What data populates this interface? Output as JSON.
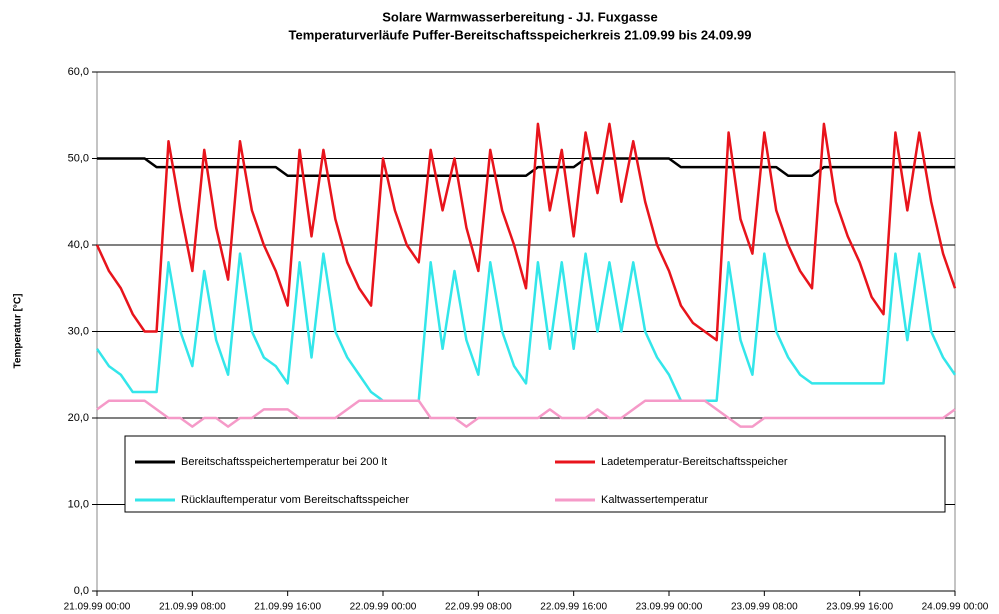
{
  "chart_data": {
    "type": "line",
    "title": "Solare Warmwasserbereitung - JJ. Fuxgasse",
    "subtitle": "Temperaturverläufe Puffer-Bereitschaftsspeicherkreis 21.09.99 bis 24.09.99",
    "y_label": "Temperatur [°C]",
    "x": [
      0,
      1,
      2,
      3,
      4,
      5,
      6,
      7,
      8,
      9,
      10,
      11,
      12,
      13,
      14,
      15,
      16,
      17,
      18,
      19,
      20,
      21,
      22,
      23,
      24,
      25,
      26,
      27,
      28,
      29,
      30,
      31,
      32,
      33,
      34,
      35,
      36,
      37,
      38,
      39,
      40,
      41,
      42,
      43,
      44,
      45,
      46,
      47,
      48,
      49,
      50,
      51,
      52,
      53,
      54,
      55,
      56,
      57,
      58,
      59,
      60,
      61,
      62,
      63,
      64,
      65,
      66,
      67,
      68,
      69,
      70,
      71,
      72
    ],
    "xlim": [
      0,
      72
    ],
    "xticks": [
      {
        "value": 0,
        "label": "21.09.99 00:00"
      },
      {
        "value": 8,
        "label": "21.09.99 08:00"
      },
      {
        "value": 16,
        "label": "21.09.99 16:00"
      },
      {
        "value": 24,
        "label": "22.09.99 00:00"
      },
      {
        "value": 32,
        "label": "22.09.99 08:00"
      },
      {
        "value": 40,
        "label": "22.09.99 16:00"
      },
      {
        "value": 48,
        "label": "23.09.99 00:00"
      },
      {
        "value": 56,
        "label": "23.09.99 08:00"
      },
      {
        "value": 64,
        "label": "23.09.99 16:00"
      },
      {
        "value": 72,
        "label": "24.09.99 00:00"
      }
    ],
    "ylim": [
      0,
      60
    ],
    "yticks": [
      {
        "value": 0,
        "label": "0,0"
      },
      {
        "value": 10,
        "label": "10,0"
      },
      {
        "value": 20,
        "label": "20,0"
      },
      {
        "value": 30,
        "label": "30,0"
      },
      {
        "value": 40,
        "label": "40,0"
      },
      {
        "value": 50,
        "label": "50,0"
      },
      {
        "value": 60,
        "label": "60,0"
      }
    ],
    "grid": true,
    "legend": "bottom",
    "series": [
      {
        "name": "Bereitschaftsspeichertemperatur bei 200 lt",
        "color": "#000000",
        "values": [
          50,
          50,
          50,
          50,
          50,
          49,
          49,
          49,
          49,
          49,
          49,
          49,
          49,
          49,
          49,
          49,
          48,
          48,
          48,
          48,
          48,
          48,
          48,
          48,
          48,
          48,
          48,
          48,
          48,
          48,
          48,
          48,
          48,
          48,
          48,
          48,
          48,
          49,
          49,
          49,
          49,
          50,
          50,
          50,
          50,
          50,
          50,
          50,
          50,
          49,
          49,
          49,
          49,
          49,
          49,
          49,
          49,
          49,
          48,
          48,
          48,
          49,
          49,
          49,
          49,
          49,
          49,
          49,
          49,
          49,
          49,
          49,
          49
        ]
      },
      {
        "name": "Ladetemperatur-Bereitschaftsspeicher",
        "color": "#e8141c",
        "values": [
          40,
          37,
          35,
          32,
          30,
          30,
          52,
          44,
          37,
          51,
          42,
          36,
          52,
          44,
          40,
          37,
          33,
          51,
          41,
          51,
          43,
          38,
          35,
          33,
          50,
          44,
          40,
          38,
          51,
          44,
          50,
          42,
          37,
          51,
          44,
          40,
          35,
          54,
          44,
          51,
          41,
          53,
          46,
          54,
          45,
          52,
          45,
          40,
          37,
          33,
          31,
          30,
          29,
          53,
          43,
          39,
          53,
          44,
          40,
          37,
          35,
          54,
          45,
          41,
          38,
          34,
          32,
          53,
          44,
          53,
          45,
          39,
          35
        ]
      },
      {
        "name": "Rücklauftemperatur vom Bereitschaftsspeicher",
        "color": "#33e6ea",
        "values": [
          28,
          26,
          25,
          23,
          23,
          23,
          38,
          30,
          26,
          37,
          29,
          25,
          39,
          30,
          27,
          26,
          24,
          38,
          27,
          39,
          30,
          27,
          25,
          23,
          22,
          22,
          22,
          22,
          38,
          28,
          37,
          29,
          25,
          38,
          30,
          26,
          24,
          38,
          28,
          38,
          28,
          39,
          30,
          38,
          30,
          38,
          30,
          27,
          25,
          22,
          22,
          22,
          22,
          38,
          29,
          25,
          39,
          30,
          27,
          25,
          24,
          24,
          24,
          24,
          24,
          24,
          24,
          39,
          29,
          39,
          30,
          27,
          25
        ]
      },
      {
        "name": "Kaltwassertemperatur",
        "color": "#f59ac8",
        "values": [
          21,
          22,
          22,
          22,
          22,
          21,
          20,
          20,
          19,
          20,
          20,
          19,
          20,
          20,
          21,
          21,
          21,
          20,
          20,
          20,
          20,
          21,
          22,
          22,
          22,
          22,
          22,
          22,
          20,
          20,
          20,
          19,
          20,
          20,
          20,
          20,
          20,
          20,
          21,
          20,
          20,
          20,
          21,
          20,
          20,
          21,
          22,
          22,
          22,
          22,
          22,
          22,
          21,
          20,
          19,
          19,
          20,
          20,
          20,
          20,
          20,
          20,
          20,
          20,
          20,
          20,
          20,
          20,
          20,
          20,
          20,
          20,
          21
        ]
      }
    ]
  }
}
